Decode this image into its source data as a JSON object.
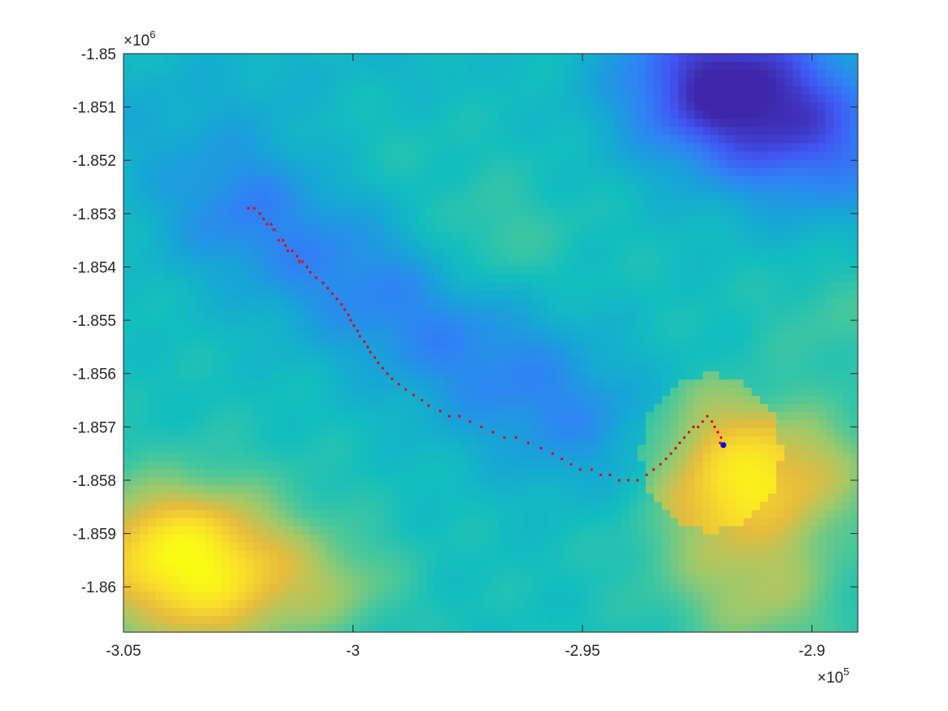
{
  "chart_data": {
    "type": "heatmap",
    "title": "",
    "xlabel": "",
    "ylabel": "",
    "xlim": [
      -3.05,
      -2.89
    ],
    "ylim": [
      -1.86,
      -1.85
    ],
    "ylim_full": [
      -1.86085,
      -1.85
    ],
    "x_multiplier": {
      "base": "×10",
      "exponent": "5"
    },
    "y_multiplier": {
      "base": "×10",
      "exponent": "6"
    },
    "x_ticks": [
      {
        "value": -3.05,
        "label": "-3.05"
      },
      {
        "value": -3.0,
        "label": "-3"
      },
      {
        "value": -2.95,
        "label": "-2.95"
      },
      {
        "value": -2.9,
        "label": "-2.9"
      }
    ],
    "y_ticks": [
      {
        "value": -1.85,
        "label": "-1.85"
      },
      {
        "value": -1.851,
        "label": "-1.851"
      },
      {
        "value": -1.852,
        "label": "-1.852"
      },
      {
        "value": -1.853,
        "label": "-1.853"
      },
      {
        "value": -1.854,
        "label": "-1.854"
      },
      {
        "value": -1.855,
        "label": "-1.855"
      },
      {
        "value": -1.856,
        "label": "-1.856"
      },
      {
        "value": -1.857,
        "label": "-1.857"
      },
      {
        "value": -1.858,
        "label": "-1.858"
      },
      {
        "value": -1.859,
        "label": "-1.859"
      },
      {
        "value": -1.86,
        "label": "-1.86"
      }
    ],
    "colormap": [
      "#3e26a8",
      "#4155f3",
      "#2f83f4",
      "#17a5d6",
      "#12bebe",
      "#4ac89a",
      "#a0c96a",
      "#e6bc3c",
      "#fadc2b",
      "#f9fb14"
    ],
    "track_color": "#e8000b",
    "marker_color": "#0000ff",
    "grid": false,
    "legend": "none",
    "track": [
      [
        -3.0228,
        -1.8529
      ],
      [
        -3.0215,
        -1.8529
      ],
      [
        -3.0203,
        -1.853
      ],
      [
        -3.0195,
        -1.8531
      ],
      [
        -3.0187,
        -1.8532
      ],
      [
        -3.0178,
        -1.8532
      ],
      [
        -3.0172,
        -1.8533
      ],
      [
        -3.0162,
        -1.8535
      ],
      [
        -3.0152,
        -1.8535
      ],
      [
        -3.0147,
        -1.8536
      ],
      [
        -3.0142,
        -1.8537
      ],
      [
        -3.0132,
        -1.8537
      ],
      [
        -3.0122,
        -1.8538
      ],
      [
        -3.0117,
        -1.8539
      ],
      [
        -3.011,
        -1.8539
      ],
      [
        -3.01,
        -1.854
      ],
      [
        -3.0093,
        -1.8541
      ],
      [
        -3.008,
        -1.8542
      ],
      [
        -3.0065,
        -1.8543
      ],
      [
        -3.0055,
        -1.8544
      ],
      [
        -3.0045,
        -1.8545
      ],
      [
        -3.0035,
        -1.8546
      ],
      [
        -3.0025,
        -1.8547
      ],
      [
        -3.0018,
        -1.8548
      ],
      [
        -3.001,
        -1.8549
      ],
      [
        -3.0005,
        -1.855
      ],
      [
        -2.9998,
        -1.8551
      ],
      [
        -2.999,
        -1.8552
      ],
      [
        -2.9985,
        -1.8553
      ],
      [
        -2.9975,
        -1.8554
      ],
      [
        -2.9968,
        -1.8555
      ],
      [
        -2.9962,
        -1.8556
      ],
      [
        -2.9952,
        -1.8557
      ],
      [
        -2.9945,
        -1.8558
      ],
      [
        -2.9935,
        -1.8559
      ],
      [
        -2.9925,
        -1.856
      ],
      [
        -2.9915,
        -1.8561
      ],
      [
        -2.99,
        -1.8562
      ],
      [
        -2.9885,
        -1.8563
      ],
      [
        -2.9868,
        -1.8564
      ],
      [
        -2.985,
        -1.8565
      ],
      [
        -2.9835,
        -1.8566
      ],
      [
        -2.981,
        -1.8567
      ],
      [
        -2.979,
        -1.8568
      ],
      [
        -2.9768,
        -1.8568
      ],
      [
        -2.9745,
        -1.8569
      ],
      [
        -2.972,
        -1.857
      ],
      [
        -2.9695,
        -1.8571
      ],
      [
        -2.967,
        -1.8572
      ],
      [
        -2.9645,
        -1.8572
      ],
      [
        -2.9618,
        -1.8573
      ],
      [
        -2.959,
        -1.8574
      ],
      [
        -2.9565,
        -1.8575
      ],
      [
        -2.9545,
        -1.8576
      ],
      [
        -2.9525,
        -1.8577
      ],
      [
        -2.9505,
        -1.8578
      ],
      [
        -2.948,
        -1.8578
      ],
      [
        -2.946,
        -1.8579
      ],
      [
        -2.944,
        -1.8579
      ],
      [
        -2.942,
        -1.858
      ],
      [
        -2.94,
        -1.858
      ],
      [
        -2.938,
        -1.858
      ],
      [
        -2.936,
        -1.8579
      ],
      [
        -2.9345,
        -1.8578
      ],
      [
        -2.933,
        -1.8577
      ],
      [
        -2.9318,
        -1.8576
      ],
      [
        -2.9307,
        -1.8575
      ],
      [
        -2.9297,
        -1.8574
      ],
      [
        -2.9288,
        -1.8573
      ],
      [
        -2.9278,
        -1.8572
      ],
      [
        -2.9268,
        -1.8571
      ],
      [
        -2.9258,
        -1.857
      ],
      [
        -2.9248,
        -1.857
      ],
      [
        -2.9238,
        -1.8569
      ],
      [
        -2.9228,
        -1.8568
      ],
      [
        -2.9218,
        -1.8569
      ],
      [
        -2.9212,
        -1.857
      ],
      [
        -2.9205,
        -1.8571
      ],
      [
        -2.9198,
        -1.8572
      ],
      [
        -2.92,
        -1.8573
      ]
    ],
    "marker": [
      -2.9193,
      -1.85734
    ]
  }
}
